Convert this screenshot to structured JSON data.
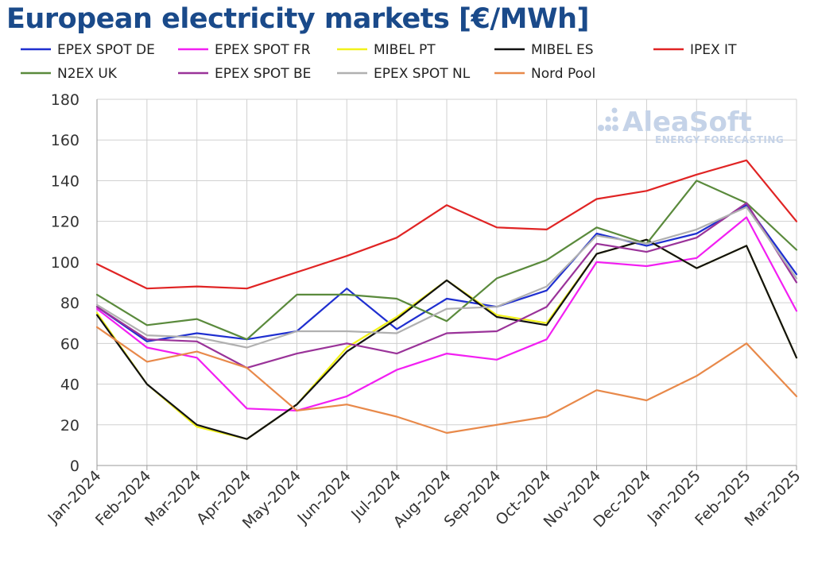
{
  "chart_data": {
    "type": "line",
    "title": "European electricity markets [€/MWh]",
    "xlabel": "",
    "ylabel": "",
    "ylim": [
      0,
      180
    ],
    "yticks": [
      0,
      20,
      40,
      60,
      80,
      100,
      120,
      140,
      160,
      180
    ],
    "grid": true,
    "legend_position": "top",
    "categories": [
      "Jan-2024",
      "Feb-2024",
      "Mar-2024",
      "Apr-2024",
      "May-2024",
      "Jun-2024",
      "Jul-2024",
      "Aug-2024",
      "Sep-2024",
      "Oct-2024",
      "Nov-2024",
      "Dec-2024",
      "Jan-2025",
      "Feb-2025",
      "Mar-2025"
    ],
    "series": [
      {
        "name": "EPEX SPOT DE",
        "color": "#1f2fd0",
        "values": [
          78,
          61,
          65,
          62,
          66,
          87,
          67,
          82,
          78,
          86,
          114,
          108,
          114,
          128,
          94
        ]
      },
      {
        "name": "EPEX SPOT FR",
        "color": "#f21ff2",
        "values": [
          77,
          58,
          53,
          28,
          27,
          34,
          47,
          55,
          52,
          62,
          100,
          98,
          102,
          122,
          76
        ]
      },
      {
        "name": "MIBEL PT",
        "color": "#f2f21a",
        "values": [
          75,
          40,
          19,
          13,
          30,
          58,
          73,
          91,
          74,
          70,
          104,
          111,
          97,
          108,
          53
        ]
      },
      {
        "name": "MIBEL ES",
        "color": "#111111",
        "values": [
          74,
          40,
          20,
          13,
          30,
          56,
          72,
          91,
          73,
          69,
          104,
          111,
          97,
          108,
          53
        ]
      },
      {
        "name": "IPEX IT",
        "color": "#e02424",
        "values": [
          99,
          87,
          88,
          87,
          95,
          103,
          112,
          128,
          117,
          116,
          131,
          135,
          143,
          150,
          120
        ]
      },
      {
        "name": "N2EX UK",
        "color": "#5a8a3c",
        "values": [
          84,
          69,
          72,
          62,
          84,
          84,
          82,
          71,
          92,
          101,
          117,
          109,
          140,
          129,
          106
        ]
      },
      {
        "name": "EPEX SPOT BE",
        "color": "#9a3399",
        "values": [
          78,
          62,
          61,
          48,
          55,
          60,
          55,
          65,
          66,
          78,
          109,
          105,
          112,
          129,
          90
        ]
      },
      {
        "name": "EPEX SPOT NL",
        "color": "#b0b0b0",
        "values": [
          79,
          64,
          63,
          58,
          66,
          66,
          65,
          77,
          78,
          88,
          113,
          109,
          116,
          127,
          92
        ]
      },
      {
        "name": "Nord Pool",
        "color": "#e8894a",
        "values": [
          68,
          51,
          56,
          48,
          27,
          30,
          24,
          16,
          20,
          24,
          37,
          32,
          44,
          60,
          34
        ]
      }
    ]
  },
  "logo": {
    "name": "AleaSoft",
    "tagline": "ENERGY FORECASTING"
  }
}
